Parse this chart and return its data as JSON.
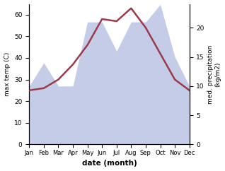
{
  "months": [
    "Jan",
    "Feb",
    "Mar",
    "Apr",
    "May",
    "Jun",
    "Jul",
    "Aug",
    "Sep",
    "Oct",
    "Nov",
    "Dec"
  ],
  "temp": [
    25,
    26,
    30,
    37,
    46,
    58,
    57,
    63,
    54,
    42,
    30,
    25
  ],
  "precip": [
    10,
    14,
    10,
    10,
    21,
    21,
    16,
    21,
    21,
    24,
    15,
    10
  ],
  "temp_color": "#9b3a4a",
  "precip_fill_color": "#c5cce8",
  "background_color": "#ffffff",
  "ylabel_left": "max temp (C)",
  "ylabel_right": "med. precipitation\n(kg/m2)",
  "xlabel": "date (month)",
  "ylim_left": [
    0,
    65
  ],
  "ylim_right": [
    0,
    24.1
  ],
  "yticks_left": [
    0,
    10,
    20,
    30,
    40,
    50,
    60
  ],
  "yticks_right": [
    0,
    5,
    10,
    15,
    20
  ],
  "figsize": [
    3.18,
    2.42
  ],
  "dpi": 100
}
